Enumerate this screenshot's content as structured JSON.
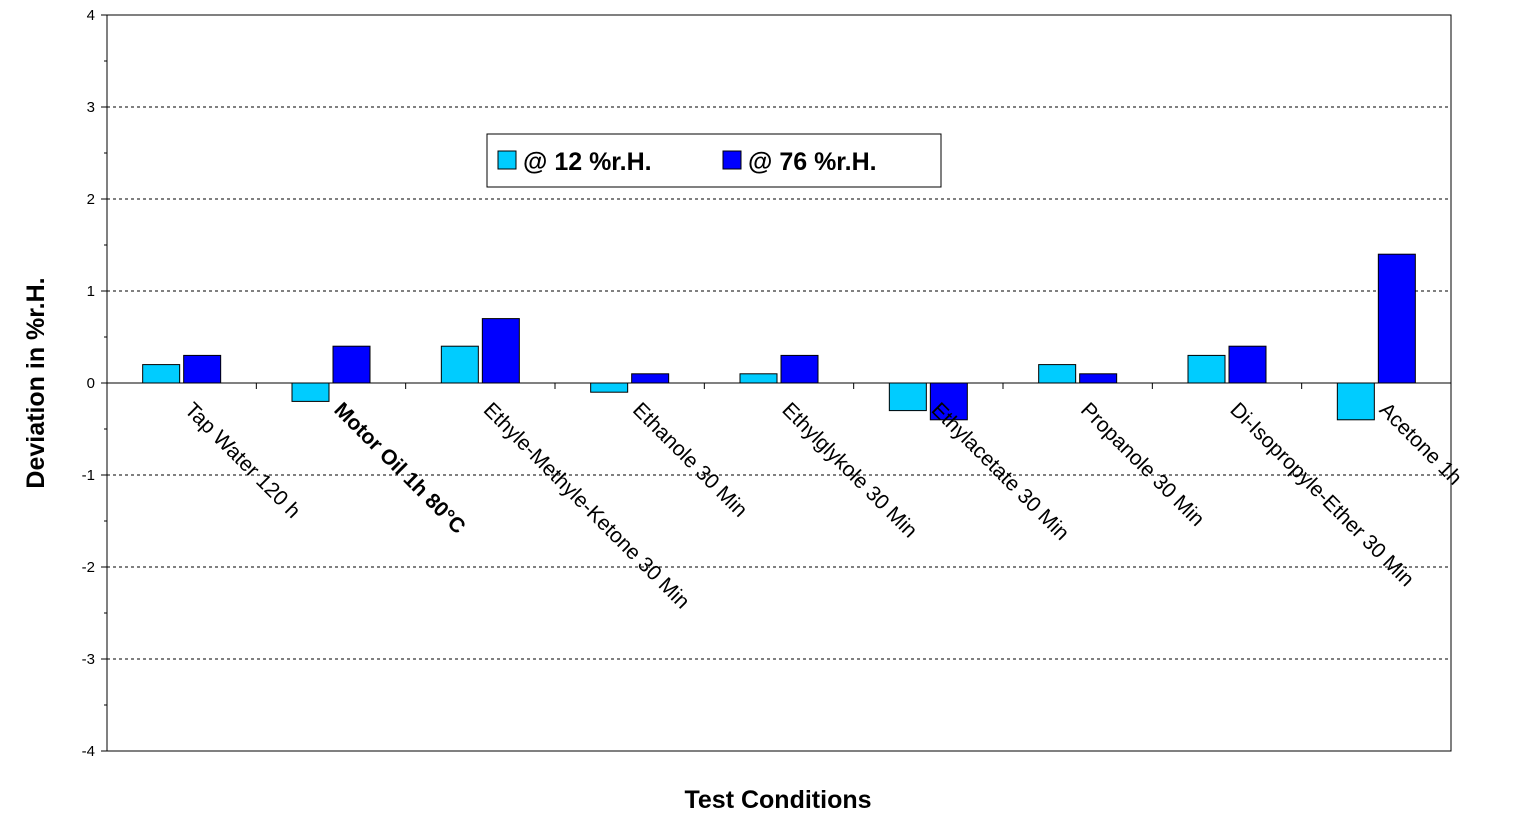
{
  "chart_data": {
    "type": "bar",
    "title": "",
    "xlabel": "Test Conditions",
    "ylabel": "Deviation in %r.H.",
    "ylim": [
      -4,
      4
    ],
    "yticks": [
      -4,
      -3,
      -2,
      -1,
      0,
      1,
      2,
      3,
      4
    ],
    "grid": "horizontal-dashed",
    "legend_position": "top-center",
    "categories": [
      "Tap Water 120 h",
      "Motor Oil 1h 80°C",
      "Ethyle-Methyle-Ketone 30 Min",
      "Ethanole 30 Min",
      "Ethylglykole 30 Min",
      "Ethylacetate 30 Min",
      "Propanole 30 Min",
      "Di-Isopropyle-Ether 30 Min",
      "Acetone 1h"
    ],
    "series": [
      {
        "name": "@ 12 %r.H.",
        "color": "#00CCFF",
        "values": [
          0.2,
          -0.2,
          0.4,
          -0.1,
          0.1,
          -0.3,
          0.2,
          0.3,
          -0.4
        ]
      },
      {
        "name": "@ 76 %r.H.",
        "color": "#0000FF",
        "values": [
          0.3,
          0.4,
          0.7,
          0.1,
          0.3,
          -0.4,
          0.1,
          0.4,
          1.4
        ]
      }
    ]
  }
}
